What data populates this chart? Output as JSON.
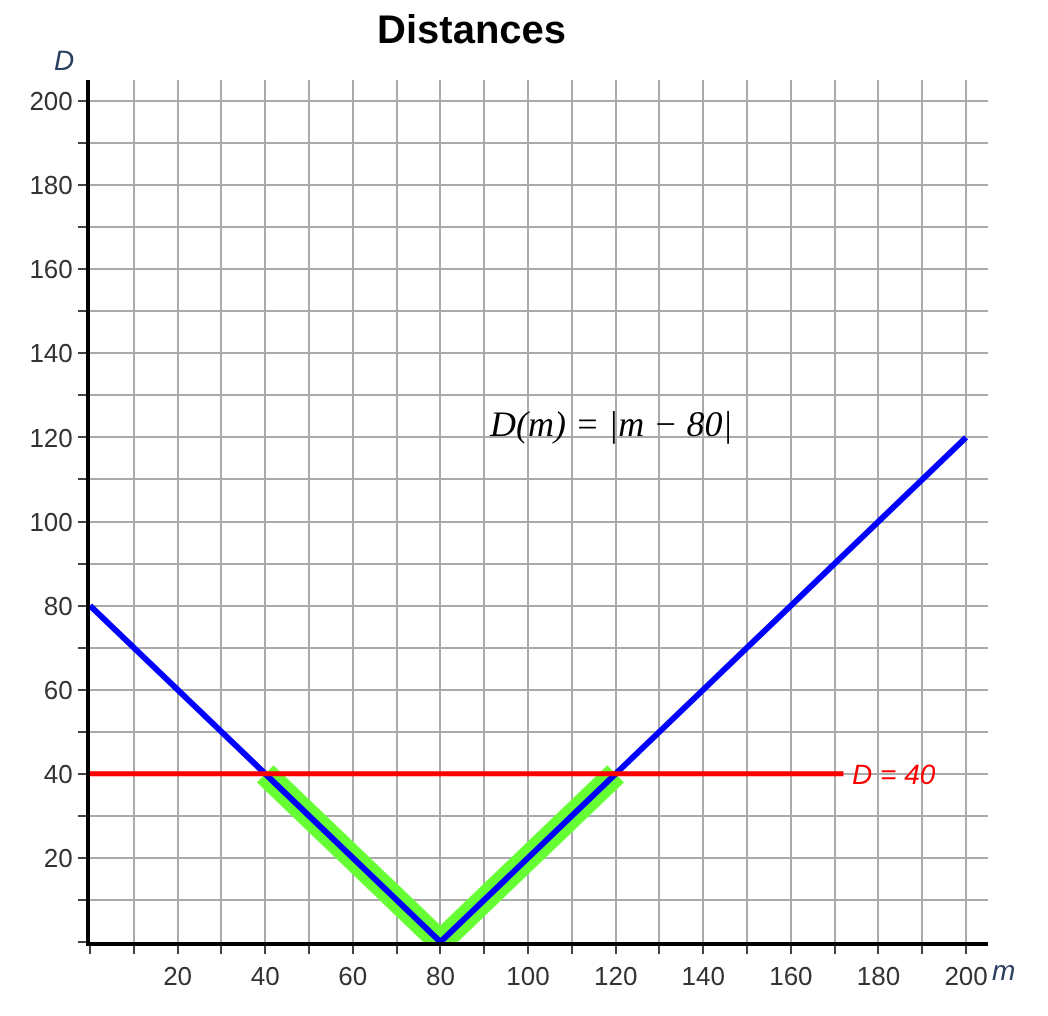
{
  "chart_data": {
    "type": "line",
    "title": "Distances",
    "xlabel": "m",
    "ylabel": "D",
    "series": [
      {
        "color": "#66ff33",
        "x": [
          40,
          80,
          120
        ],
        "values": [
          40,
          0,
          40
        ]
      },
      {
        "color": "#0000ff",
        "x": [
          0,
          80,
          200
        ],
        "values": [
          80,
          0,
          120
        ]
      }
    ],
    "xlim": [
      0,
      205
    ],
    "ylim": [
      0,
      205
    ],
    "xticks": [
      {
        "value": 0,
        "label": null
      },
      {
        "value": 10,
        "label": null
      },
      20,
      {
        "value": 30,
        "label": null
      },
      40,
      {
        "value": 50,
        "label": null
      },
      60,
      {
        "value": 70,
        "label": null
      },
      80,
      {
        "value": 90,
        "label": null
      },
      100,
      {
        "value": 110,
        "label": null
      },
      120,
      {
        "value": 130,
        "label": null
      },
      140,
      {
        "value": 150,
        "label": null
      },
      160,
      {
        "value": 170,
        "label": null
      },
      180,
      {
        "value": 190,
        "label": null
      },
      200
    ],
    "yticks": [
      {
        "value": 0,
        "label": null
      },
      {
        "value": 10,
        "label": null
      },
      20,
      {
        "value": 30,
        "label": null
      },
      40,
      {
        "value": 50,
        "label": null
      },
      60,
      {
        "value": 70,
        "label": null
      },
      80,
      {
        "value": 90,
        "label": null
      },
      100,
      {
        "value": 110,
        "label": null
      },
      120,
      {
        "value": 130,
        "label": null
      },
      140,
      {
        "value": 150,
        "label": null
      },
      160,
      {
        "value": 170,
        "label": null
      },
      180,
      {
        "value": 190,
        "label": null
      },
      200
    ],
    "ref_lines": [
      {
        "axis": "y",
        "value": 40,
        "label": "D = 40",
        "color": "#ff0000"
      }
    ],
    "annotations": [
      "D(m) = |m − 80|"
    ],
    "grid": true,
    "marker": "none",
    "line_style": "solid"
  }
}
